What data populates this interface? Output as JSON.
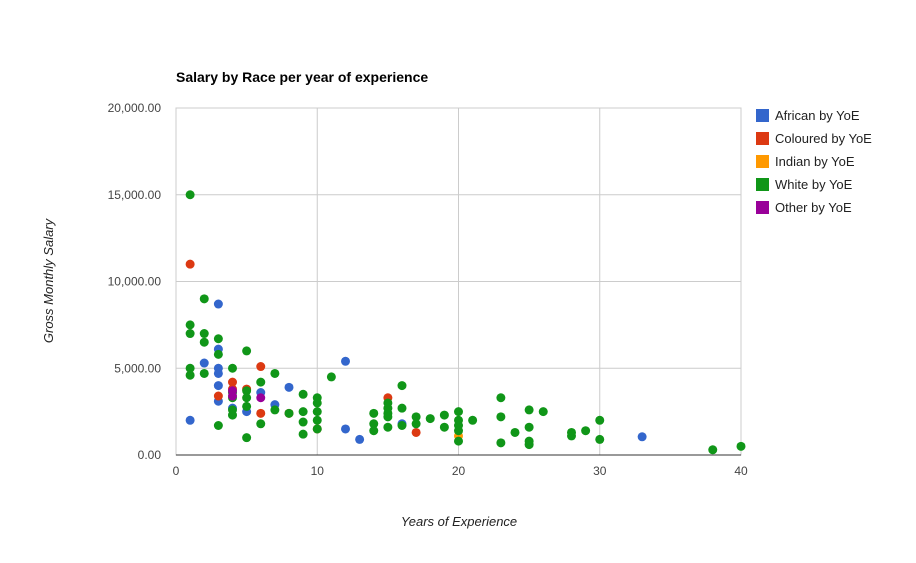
{
  "chart_data": {
    "type": "scatter",
    "title": "Salary by Race per year of experience",
    "xlabel": "Years of Experience",
    "ylabel": "Gross Monthly Salary",
    "xlim": [
      0,
      40
    ],
    "ylim": [
      0,
      20000
    ],
    "x_ticks": [
      0,
      10,
      20,
      30,
      40
    ],
    "x_tick_labels": [
      "0",
      "10",
      "20",
      "30",
      "40"
    ],
    "y_ticks": [
      0,
      5000,
      10000,
      15000,
      20000
    ],
    "y_tick_labels": [
      "0.00",
      "5,000.00",
      "10,000.00",
      "15,000.00",
      "20,000.00"
    ],
    "grid": true,
    "legend_position": "right",
    "series": [
      {
        "name": "African by YoE",
        "color": "#3366cc",
        "points": [
          [
            1,
            2000
          ],
          [
            2,
            5300
          ],
          [
            3,
            8700
          ],
          [
            3,
            6100
          ],
          [
            3,
            5000
          ],
          [
            3,
            4700
          ],
          [
            3,
            4000
          ],
          [
            3,
            3100
          ],
          [
            4,
            2700
          ],
          [
            5,
            2500
          ],
          [
            6,
            3600
          ],
          [
            7,
            2900
          ],
          [
            8,
            3900
          ],
          [
            12,
            5400
          ],
          [
            12,
            1500
          ],
          [
            13,
            900
          ],
          [
            16,
            1800
          ],
          [
            33,
            1050
          ]
        ]
      },
      {
        "name": "Coloured by YoE",
        "color": "#dc3912",
        "points": [
          [
            1,
            11000
          ],
          [
            3,
            3400
          ],
          [
            4,
            4200
          ],
          [
            4,
            3800
          ],
          [
            5,
            3800
          ],
          [
            6,
            5100
          ],
          [
            6,
            2400
          ],
          [
            8,
            2400
          ],
          [
            10,
            1500
          ],
          [
            15,
            3300
          ],
          [
            17,
            1300
          ]
        ]
      },
      {
        "name": "Indian by YoE",
        "color": "#ff9900",
        "points": [
          [
            20,
            1100
          ]
        ]
      },
      {
        "name": "White by YoE",
        "color": "#109618",
        "points": [
          [
            1,
            15000
          ],
          [
            1,
            7500
          ],
          [
            1,
            7000
          ],
          [
            1,
            5000
          ],
          [
            1,
            4600
          ],
          [
            2,
            9000
          ],
          [
            2,
            7000
          ],
          [
            2,
            6500
          ],
          [
            2,
            4700
          ],
          [
            3,
            6700
          ],
          [
            3,
            5800
          ],
          [
            3,
            1700
          ],
          [
            4,
            5000
          ],
          [
            4,
            3600
          ],
          [
            4,
            3300
          ],
          [
            4,
            2600
          ],
          [
            4,
            2300
          ],
          [
            5,
            6000
          ],
          [
            5,
            3700
          ],
          [
            5,
            3300
          ],
          [
            5,
            2800
          ],
          [
            5,
            1000
          ],
          [
            6,
            4200
          ],
          [
            6,
            1800
          ],
          [
            7,
            4700
          ],
          [
            7,
            2600
          ],
          [
            8,
            2400
          ],
          [
            9,
            3500
          ],
          [
            9,
            2500
          ],
          [
            9,
            1900
          ],
          [
            9,
            1200
          ],
          [
            10,
            3300
          ],
          [
            10,
            3000
          ],
          [
            10,
            2500
          ],
          [
            10,
            2000
          ],
          [
            10,
            1500
          ],
          [
            11,
            4500
          ],
          [
            14,
            2400
          ],
          [
            14,
            1800
          ],
          [
            14,
            1400
          ],
          [
            15,
            3000
          ],
          [
            15,
            2700
          ],
          [
            15,
            2400
          ],
          [
            15,
            2200
          ],
          [
            15,
            1600
          ],
          [
            16,
            4000
          ],
          [
            16,
            2700
          ],
          [
            16,
            1700
          ],
          [
            17,
            2200
          ],
          [
            17,
            1800
          ],
          [
            18,
            2100
          ],
          [
            19,
            2300
          ],
          [
            19,
            1600
          ],
          [
            20,
            2500
          ],
          [
            20,
            2000
          ],
          [
            20,
            1700
          ],
          [
            20,
            1400
          ],
          [
            20,
            800
          ],
          [
            21,
            2000
          ],
          [
            23,
            3300
          ],
          [
            23,
            2200
          ],
          [
            23,
            700
          ],
          [
            24,
            1300
          ],
          [
            25,
            2600
          ],
          [
            25,
            1600
          ],
          [
            25,
            800
          ],
          [
            25,
            600
          ],
          [
            26,
            2500
          ],
          [
            28,
            1300
          ],
          [
            28,
            1100
          ],
          [
            29,
            1400
          ],
          [
            30,
            2000
          ],
          [
            30,
            900
          ],
          [
            38,
            300
          ],
          [
            40,
            500
          ]
        ]
      },
      {
        "name": "Other by YoE",
        "color": "#990099",
        "points": [
          [
            4,
            3700
          ],
          [
            4,
            3400
          ],
          [
            6,
            3300
          ]
        ]
      }
    ]
  }
}
